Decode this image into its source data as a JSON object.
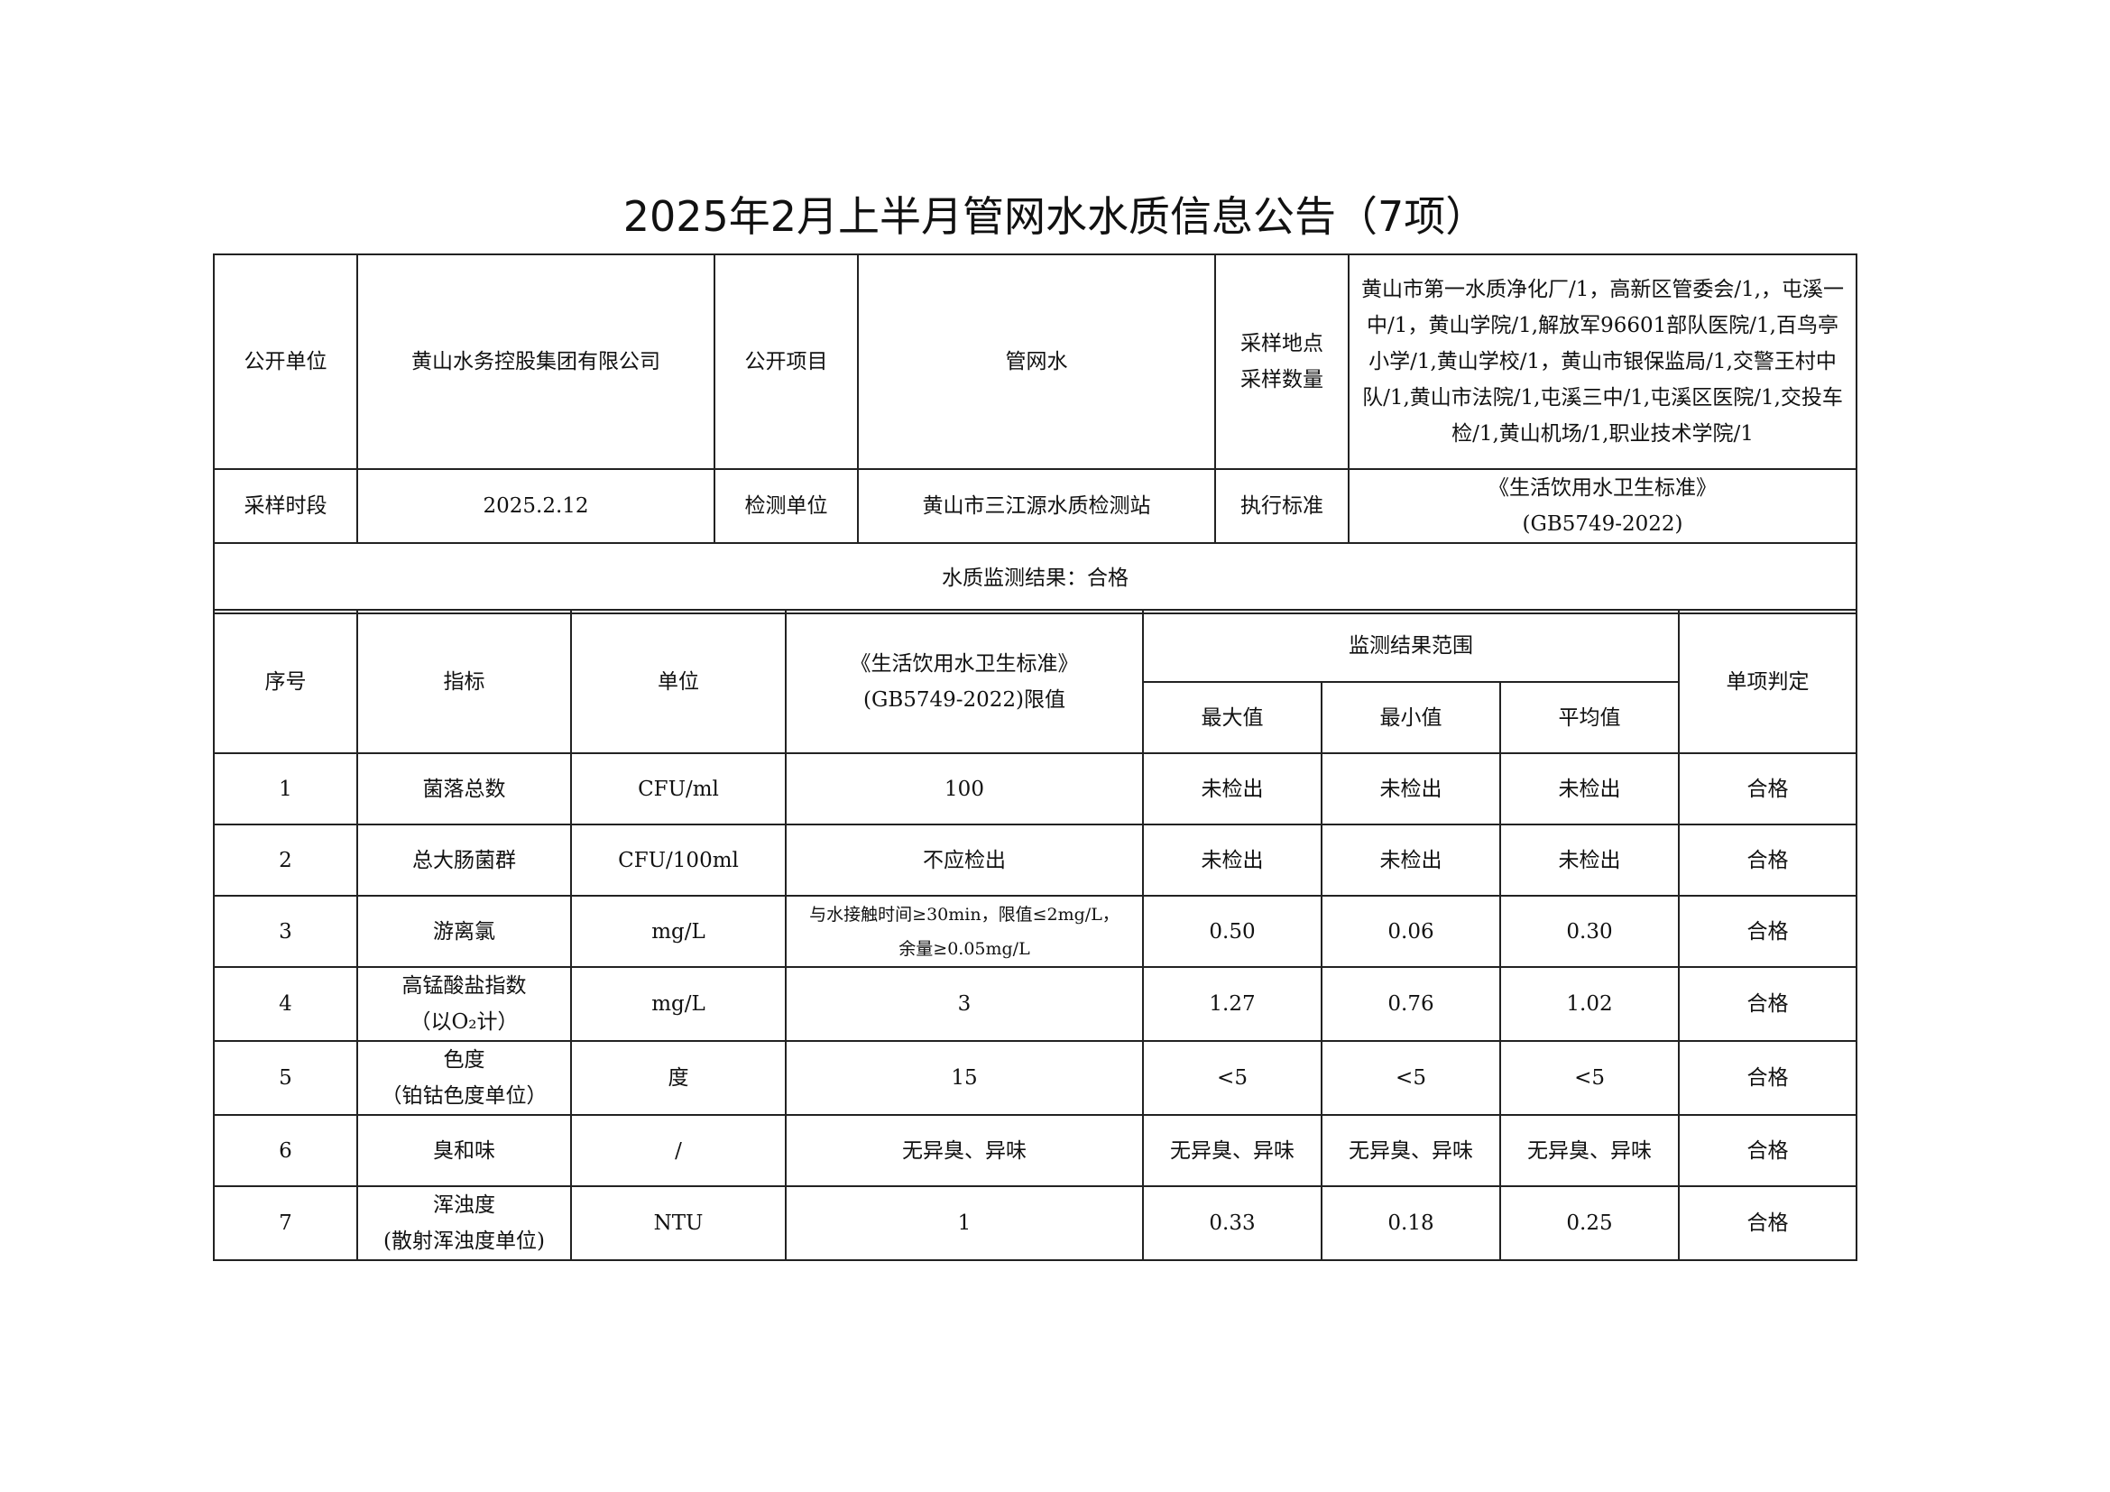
{
  "title": "2025年2月上半月管网水水质信息公告（7项）",
  "info": {
    "publisher_label": "公开单位",
    "publisher": "黄山水务控股集团有限公司",
    "item_label": "公开项目",
    "item": "管网水",
    "sites_label_1": "采样地点",
    "sites_label_2": "采样数量",
    "sites": "黄山市第一水质净化厂/1，高新区管委会/1,，屯溪一中/1，黄山学院/1,解放军96601部队医院/1,百鸟亭小学/1,黄山学校/1，黄山市银保监局/1,交警王村中队/1,黄山市法院/1,屯溪三中/1,屯溪区医院/1,交投车检/1,黄山机场/1,职业技术学院/1",
    "period_label": "采样时段",
    "period": "2025.2.12",
    "lab_label": "检测单位",
    "lab": "黄山市三江源水质检测站",
    "standard_label": "执行标准",
    "standard_1": "《生活饮用水卫生标准》",
    "standard_2": "(GB5749-2022)",
    "result": "水质监测结果：合格"
  },
  "table": {
    "headers": {
      "no": "序号",
      "indicator": "指标",
      "unit": "单位",
      "limit_1": "《生活饮用水卫生标准》",
      "limit_2": "(GB5749-2022)限值",
      "range": "监测结果范围",
      "max": "最大值",
      "min": "最小值",
      "avg": "平均值",
      "verdict": "单项判定"
    },
    "rows": [
      {
        "no": "1",
        "indicator": [
          "菌落总数"
        ],
        "unit": "CFU/ml",
        "limit": [
          "100"
        ],
        "max": "未检出",
        "min": "未检出",
        "avg": "未检出",
        "verdict": "合格"
      },
      {
        "no": "2",
        "indicator": [
          "总大肠菌群"
        ],
        "unit": "CFU/100ml",
        "limit": [
          "不应检出"
        ],
        "max": "未检出",
        "min": "未检出",
        "avg": "未检出",
        "verdict": "合格"
      },
      {
        "no": "3",
        "indicator": [
          "游离氯"
        ],
        "unit": "mg/L",
        "limit": [
          "与水接触时间≥30min，限值≤2mg/L，",
          "余量≥0.05mg/L"
        ],
        "max": "0.50",
        "min": "0.06",
        "avg": "0.30",
        "verdict": "合格"
      },
      {
        "no": "4",
        "indicator": [
          "高锰酸盐指数",
          "（以O₂计）"
        ],
        "unit": "mg/L",
        "limit": [
          "3"
        ],
        "max": "1.27",
        "min": "0.76",
        "avg": "1.02",
        "verdict": "合格"
      },
      {
        "no": "5",
        "indicator": [
          "色度",
          "（铂钴色度单位）"
        ],
        "unit": "度",
        "limit": [
          "15"
        ],
        "max": "<5",
        "min": "<5",
        "avg": "<5",
        "verdict": "合格"
      },
      {
        "no": "6",
        "indicator": [
          "臭和味"
        ],
        "unit": "/",
        "limit": [
          "无异臭、异味"
        ],
        "max": "无异臭、异味",
        "min": "无异臭、异味",
        "avg": "无异臭、异味",
        "verdict": "合格"
      },
      {
        "no": "7",
        "indicator": [
          "浑浊度",
          "(散射浑浊度单位)"
        ],
        "unit": "NTU",
        "limit": [
          "1"
        ],
        "max": "0.33",
        "min": "0.18",
        "avg": "0.25",
        "verdict": "合格"
      }
    ]
  }
}
